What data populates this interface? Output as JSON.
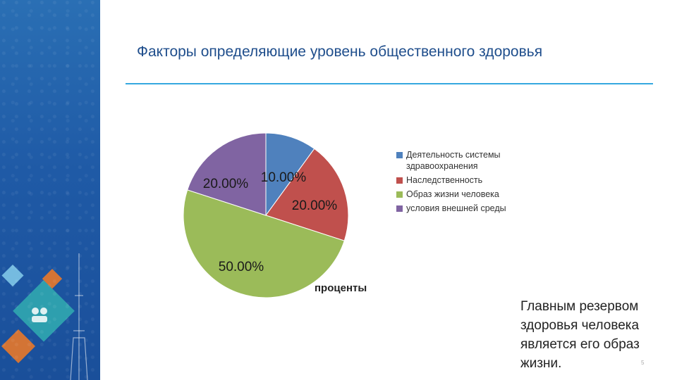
{
  "slide": {
    "title": "Факторы определяющие уровень общественного здоровья",
    "note": "Главным резервом здоровья человека является его образ жизни.",
    "number": "5"
  },
  "colors": {
    "sidebar": "#1f5aa6",
    "title": "#1f4e8c",
    "rule": "#35a8e0"
  },
  "chart_data": {
    "type": "pie",
    "title": "проценты",
    "categories": [
      "Деятельность системы здравоохранения",
      "Наследственность",
      "Образ жизни человека",
      "условия внешней среды"
    ],
    "values": [
      10,
      20,
      50,
      20
    ],
    "data_labels": [
      "10.00%",
      "20.00%",
      "50.00%",
      "20.00%"
    ],
    "colors": [
      "#4f81bd",
      "#c0504d",
      "#9bbb59",
      "#8064a2"
    ],
    "legend": "right"
  }
}
